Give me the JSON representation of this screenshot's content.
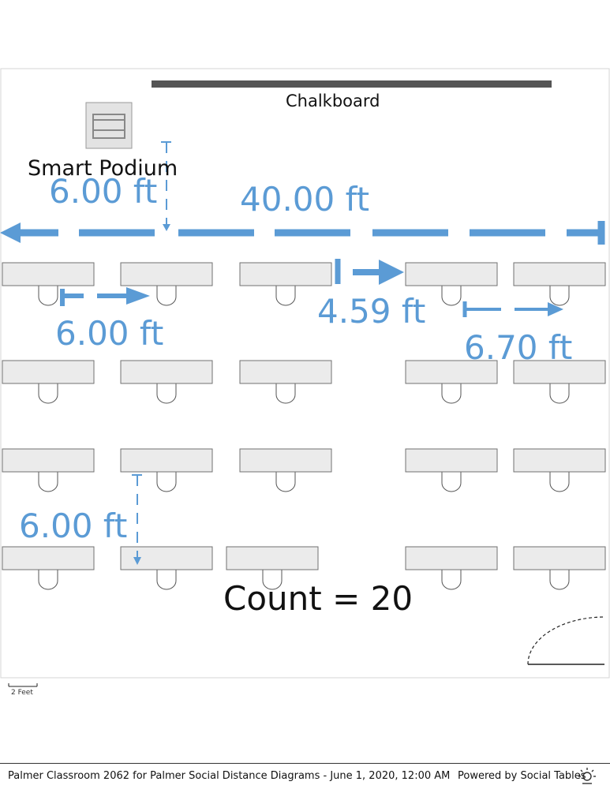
{
  "room": {
    "chalkboard_label": "Chalkboard",
    "podium_label": "Smart Podium",
    "count_label": "Count = 20"
  },
  "measurements": {
    "room_width": "40.00 ft",
    "podium_to_desks": "6.00 ft",
    "desk_to_desk": "6.00 ft",
    "aisle_gap": "4.59 ft",
    "right_spacing": "6.70 ft",
    "row_spacing": "6.00 ft"
  },
  "desk_count": 20,
  "scale": {
    "label": "2 Feet"
  },
  "footer": {
    "title": "Palmer Classroom 2062 for Palmer Social Distance Diagrams - June 1, 2020, 12:00 AM",
    "powered_by": "Powered by Social Tables"
  },
  "colors": {
    "measure": "#5b9bd5",
    "chalkboard": "#555555",
    "desk_fill": "#ebebeb",
    "desk_stroke": "#707070"
  },
  "icons": [
    "podium-icon",
    "door-icon",
    "social-tables-logo-icon"
  ]
}
